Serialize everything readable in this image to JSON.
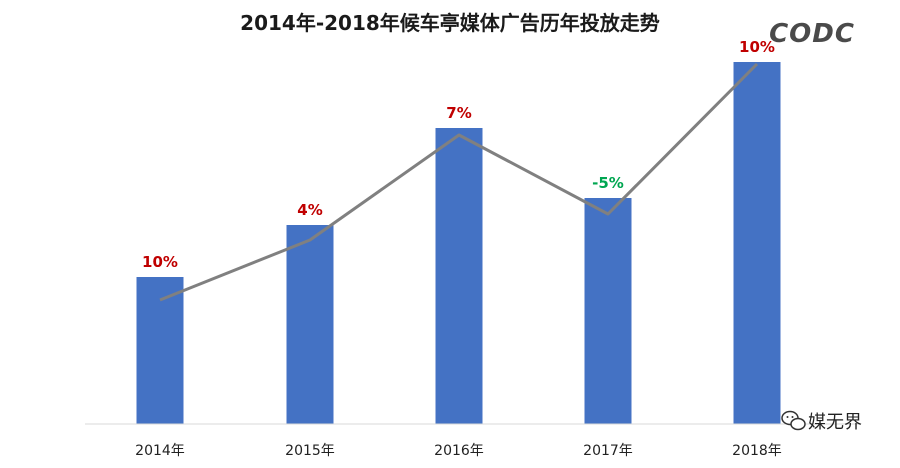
{
  "colors": {
    "bar": "#4472c4",
    "line": "#808080",
    "positive_label": "#c00000",
    "negative_label": "#00a651",
    "axis": "#d9d9d9"
  },
  "logo_text": "CODC",
  "watermark": {
    "icon": "wechat-icon",
    "text": "媒无界"
  },
  "chart_data": {
    "type": "bar",
    "title": "2014年-2018年候车亭媒体广告历年投放走势",
    "categories": [
      "2014年",
      "2015年",
      "2016年",
      "2017年",
      "2018年"
    ],
    "values": [
      147,
      199,
      296,
      226,
      362
    ],
    "growth_labels": [
      "10%",
      "4%",
      "7%",
      "-5%",
      "10%"
    ],
    "line_values": [
      124,
      184,
      289,
      210,
      360
    ],
    "ylim": [
      0,
      380
    ],
    "xlabel": "",
    "ylabel": "",
    "grid": false,
    "legend": "none"
  }
}
